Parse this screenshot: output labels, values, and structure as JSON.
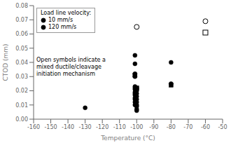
{
  "chart_data": {
    "type": "scatter",
    "xlabel": "Temperature (°C)",
    "ylabel": "CTOD (mm)",
    "xlim": [
      -160,
      -50
    ],
    "ylim": [
      0.0,
      0.08
    ],
    "xticks": [
      -160,
      -150,
      -140,
      -130,
      -120,
      -110,
      -100,
      -90,
      -80,
      -70,
      -60,
      -50
    ],
    "yticks": [
      {
        "value": 0,
        "label": "0.00"
      },
      0.01,
      0.02,
      0.03,
      0.04,
      0.05,
      0.06,
      0.07,
      0.08
    ],
    "grid": false,
    "legend": "upper left",
    "legend_title": "Load line velocity:",
    "annotation": "Open symbols indicate a\nmixed ductile/cleavage\ninitiation mechanism",
    "series": [
      {
        "name": "10 mm/s",
        "marker": "circle",
        "color": "black",
        "x": [
          -130,
          -101,
          -101,
          -101,
          -101,
          -101,
          -101,
          -101,
          -101,
          -101,
          -101,
          -101,
          -101,
          -101,
          -101,
          -100,
          -100,
          -100,
          -100,
          -100,
          -100,
          -100,
          -100,
          -100,
          -100,
          -100,
          -80,
          -80
        ],
        "values": [
          0.008,
          0.045,
          0.039,
          0.032,
          0.03,
          0.023,
          0.022,
          0.021,
          0.019,
          0.018,
          0.017,
          0.015,
          0.014,
          0.012,
          0.01,
          0.022,
          0.021,
          0.02,
          0.018,
          0.016,
          0.014,
          0.012,
          0.01,
          0.009,
          0.007,
          0.006,
          0.04,
          0.025
        ]
      },
      {
        "name": "10 mm/s",
        "marker": "open_circle",
        "color": "black",
        "x": [
          -100,
          -60
        ],
        "values": [
          0.065,
          0.069
        ]
      },
      {
        "name": "120 mm/s",
        "marker": "square",
        "color": "black",
        "x": [
          -101,
          -100,
          -80
        ],
        "values": [
          0.031,
          0.022,
          0.024
        ]
      },
      {
        "name": "120 mm/s",
        "marker": "open_square",
        "color": "black",
        "x": [
          -60
        ],
        "values": [
          0.061
        ]
      }
    ]
  }
}
